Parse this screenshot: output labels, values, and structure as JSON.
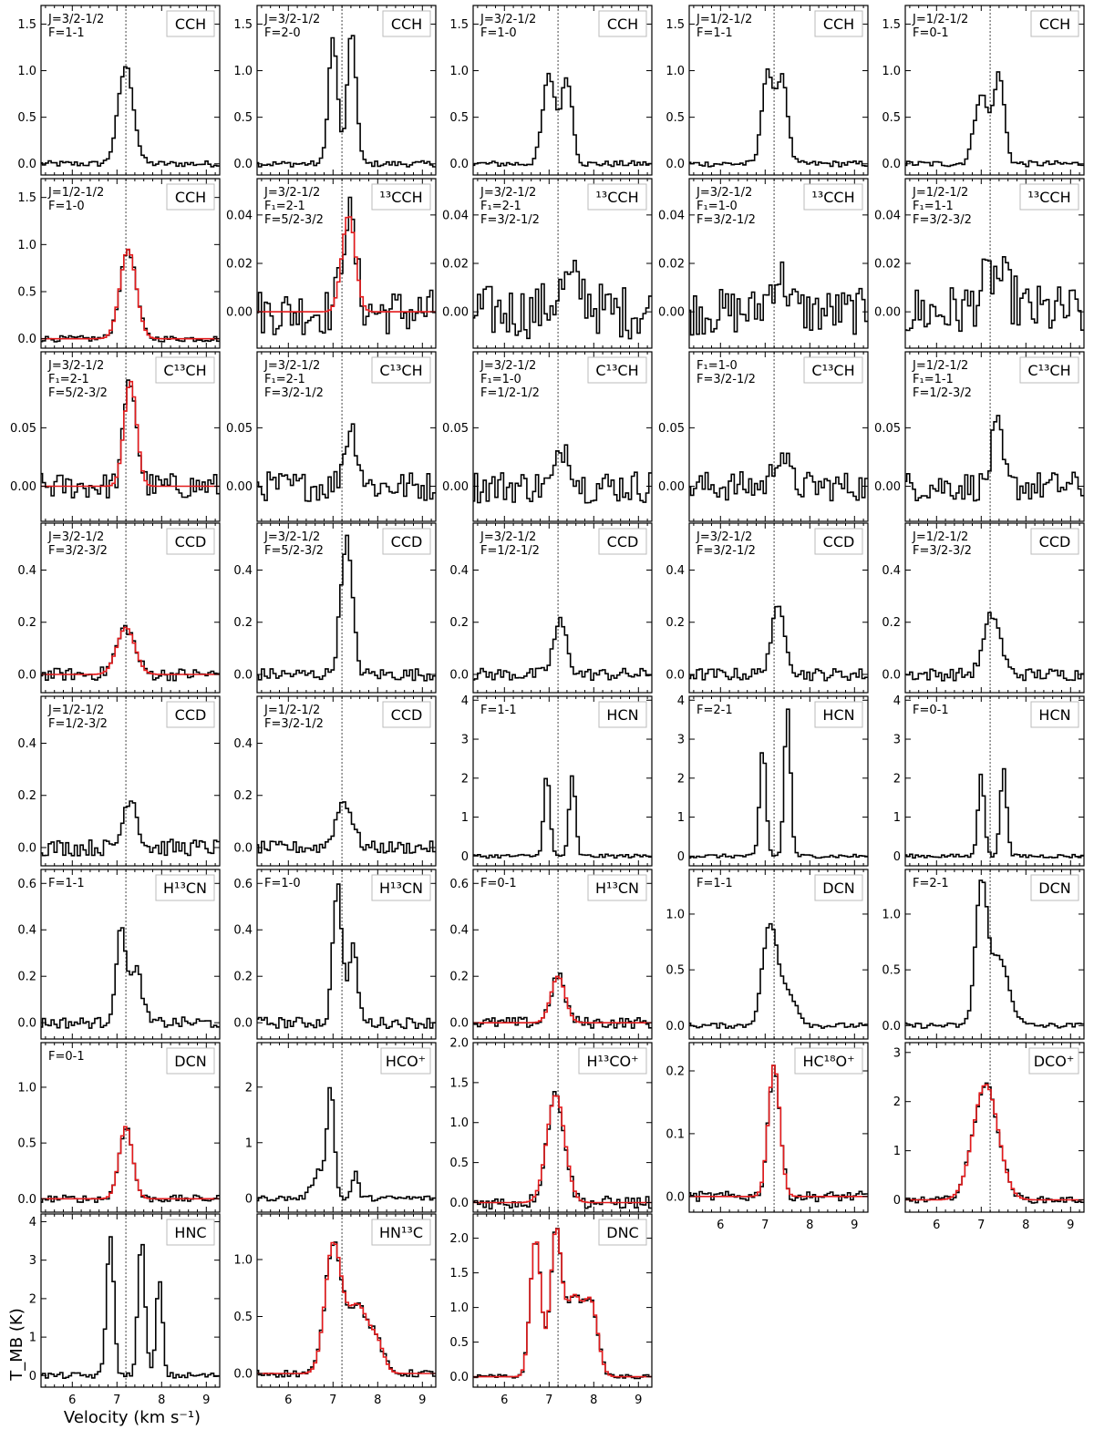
{
  "chart_data": {
    "type": "line",
    "xlabel": "Velocity  (km s⁻¹)",
    "ylabel": "T_MB  (K)",
    "xlim": [
      5.3,
      9.3
    ],
    "x_ticks": [
      6,
      7,
      8,
      9
    ],
    "reference_velocity": 7.2,
    "colors": {
      "observed": "#000000",
      "fit": "#e31a1c",
      "reference_line": "#666666"
    },
    "panels": [
      {
        "row": 0,
        "col": 0,
        "molecule": "CCH",
        "qn": [
          "J=3/2-1/2",
          "F=1-1"
        ],
        "ylim": [
          -0.12,
          1.7
        ],
        "yticks": [
          "0.0",
          "0.5",
          "1.0",
          "1.5"
        ],
        "fit": false,
        "components": [
          {
            "v": 7.2,
            "amp": 1.05,
            "width": 0.17
          }
        ],
        "noise": 0.02
      },
      {
        "row": 0,
        "col": 1,
        "molecule": "CCH",
        "qn": [
          "J=3/2-1/2",
          "F=2-0"
        ],
        "ylim": [
          -0.12,
          1.7
        ],
        "yticks": [
          "0.0",
          "0.5",
          "1.0",
          "1.5"
        ],
        "fit": false,
        "components": [
          {
            "v": 7.0,
            "amp": 1.35,
            "width": 0.1
          },
          {
            "v": 7.42,
            "amp": 1.42,
            "width": 0.1
          }
        ],
        "noise": 0.02
      },
      {
        "row": 0,
        "col": 2,
        "molecule": "CCH",
        "qn": [
          "J=3/2-1/2",
          "F=1-0"
        ],
        "ylim": [
          -0.12,
          1.7
        ],
        "yticks": [
          "0.0",
          "0.5",
          "1.0",
          "1.5"
        ],
        "fit": false,
        "components": [
          {
            "v": 7.0,
            "amp": 0.95,
            "width": 0.14
          },
          {
            "v": 7.4,
            "amp": 0.92,
            "width": 0.12
          }
        ],
        "noise": 0.02
      },
      {
        "row": 0,
        "col": 3,
        "molecule": "CCH",
        "qn": [
          "J=1/2-1/2",
          "F=1-1"
        ],
        "ylim": [
          -0.12,
          1.7
        ],
        "yticks": [
          "0.0",
          "0.5",
          "1.0",
          "1.5"
        ],
        "fit": false,
        "components": [
          {
            "v": 7.05,
            "amp": 1.0,
            "width": 0.12
          },
          {
            "v": 7.38,
            "amp": 0.95,
            "width": 0.12
          }
        ],
        "noise": 0.02
      },
      {
        "row": 0,
        "col": 4,
        "molecule": "CCH",
        "qn": [
          "J=1/2-1/2",
          "F=0-1"
        ],
        "ylim": [
          -0.12,
          1.7
        ],
        "yticks": [
          "0.0",
          "0.5",
          "1.0",
          "1.5"
        ],
        "fit": false,
        "components": [
          {
            "v": 7.0,
            "amp": 0.75,
            "width": 0.15
          },
          {
            "v": 7.4,
            "amp": 0.95,
            "width": 0.12
          }
        ],
        "noise": 0.02
      },
      {
        "row": 1,
        "col": 0,
        "molecule": "CCH",
        "qn": [
          "J=1/2-1/2",
          "F=1-0"
        ],
        "ylim": [
          -0.1,
          1.7
        ],
        "yticks": [
          "0.0",
          "0.5",
          "1.0",
          "1.5"
        ],
        "fit": true,
        "components": [
          {
            "v": 7.25,
            "amp": 0.95,
            "width": 0.18
          }
        ],
        "noise": 0.02
      },
      {
        "row": 1,
        "col": 1,
        "molecule": "¹³CCH",
        "qn": [
          "J=3/2-1/2",
          "F₁=2-1",
          "F=5/2-3/2"
        ],
        "ylim": [
          -0.015,
          0.055
        ],
        "yticks": [
          "0.00",
          "0.02",
          "0.04"
        ],
        "fit": true,
        "components": [
          {
            "v": 7.35,
            "amp": 0.04,
            "width": 0.15
          }
        ],
        "noise": 0.006
      },
      {
        "row": 1,
        "col": 2,
        "molecule": "¹³CCH",
        "qn": [
          "J=3/2-1/2",
          "F₁=2-1",
          "F=3/2-1/2"
        ],
        "ylim": [
          -0.015,
          0.055
        ],
        "yticks": [
          "0.00",
          "0.02",
          "0.04"
        ],
        "fit": false,
        "components": [
          {
            "v": 7.5,
            "amp": 0.012,
            "width": 0.3
          }
        ],
        "noise": 0.007
      },
      {
        "row": 1,
        "col": 3,
        "molecule": "¹³CCH",
        "qn": [
          "J=3/2-1/2",
          "F₁=1-0",
          "F=3/2-1/2"
        ],
        "ylim": [
          -0.015,
          0.055
        ],
        "yticks": [
          "0.00",
          "0.02",
          "0.04"
        ],
        "fit": false,
        "components": [
          {
            "v": 7.3,
            "amp": 0.015,
            "width": 0.2
          }
        ],
        "noise": 0.006
      },
      {
        "row": 1,
        "col": 4,
        "molecule": "¹³CCH",
        "qn": [
          "J=1/2-1/2",
          "F₁=1-1",
          "F=3/2-3/2"
        ],
        "ylim": [
          -0.015,
          0.055
        ],
        "yticks": [
          "0.00",
          "0.02",
          "0.04"
        ],
        "fit": false,
        "components": [
          {
            "v": 7.3,
            "amp": 0.015,
            "width": 0.3
          }
        ],
        "noise": 0.007
      },
      {
        "row": 2,
        "col": 0,
        "molecule": "C¹³CH",
        "qn": [
          "J=3/2-1/2",
          "F₁=2-1",
          "F=5/2-3/2"
        ],
        "ylim": [
          -0.03,
          0.115
        ],
        "yticks": [
          "0.00",
          "0.05"
        ],
        "fit": true,
        "components": [
          {
            "v": 7.3,
            "amp": 0.09,
            "width": 0.14
          }
        ],
        "noise": 0.007
      },
      {
        "row": 2,
        "col": 1,
        "molecule": "C¹³CH",
        "qn": [
          "J=3/2-1/2",
          "F₁=2-1",
          "F=3/2-1/2"
        ],
        "ylim": [
          -0.03,
          0.115
        ],
        "yticks": [
          "0.00",
          "0.05"
        ],
        "fit": false,
        "components": [
          {
            "v": 7.4,
            "amp": 0.05,
            "width": 0.15
          }
        ],
        "noise": 0.008
      },
      {
        "row": 2,
        "col": 2,
        "molecule": "C¹³CH",
        "qn": [
          "J=3/2-1/2",
          "F₁=1-0",
          "F=1/2-1/2"
        ],
        "ylim": [
          -0.03,
          0.115
        ],
        "yticks": [
          "0.00",
          "0.05"
        ],
        "fit": false,
        "components": [
          {
            "v": 7.35,
            "amp": 0.035,
            "width": 0.15
          }
        ],
        "noise": 0.009
      },
      {
        "row": 2,
        "col": 3,
        "molecule": "C¹³CH",
        "qn": [
          "F₁=1-0",
          "F=3/2-1/2"
        ],
        "ylim": [
          -0.03,
          0.115
        ],
        "yticks": [
          "0.00",
          "0.05"
        ],
        "fit": false,
        "components": [
          {
            "v": 7.35,
            "amp": 0.03,
            "width": 0.15
          }
        ],
        "noise": 0.008
      },
      {
        "row": 2,
        "col": 4,
        "molecule": "C¹³CH",
        "qn": [
          "J=1/2-1/2",
          "F₁=1-1",
          "F=1/2-3/2"
        ],
        "ylim": [
          -0.03,
          0.115
        ],
        "yticks": [
          "0.00",
          "0.05"
        ],
        "fit": false,
        "components": [
          {
            "v": 7.35,
            "amp": 0.05,
            "width": 0.12
          }
        ],
        "noise": 0.008
      },
      {
        "row": 3,
        "col": 0,
        "molecule": "CCD",
        "qn": [
          "J=3/2-1/2",
          "F=3/2-3/2"
        ],
        "ylim": [
          -0.07,
          0.58
        ],
        "yticks": [
          "0.0",
          "0.2",
          "0.4"
        ],
        "fit": true,
        "components": [
          {
            "v": 7.2,
            "amp": 0.18,
            "width": 0.2
          }
        ],
        "noise": 0.015
      },
      {
        "row": 3,
        "col": 1,
        "molecule": "CCD",
        "qn": [
          "J=3/2-1/2",
          "F=5/2-3/2"
        ],
        "ylim": [
          -0.07,
          0.58
        ],
        "yticks": [
          "0.0",
          "0.2",
          "0.4"
        ],
        "fit": false,
        "components": [
          {
            "v": 7.3,
            "amp": 0.52,
            "width": 0.13
          }
        ],
        "noise": 0.015
      },
      {
        "row": 3,
        "col": 2,
        "molecule": "CCD",
        "qn": [
          "J=3/2-1/2",
          "F=1/2-1/2"
        ],
        "ylim": [
          -0.07,
          0.58
        ],
        "yticks": [
          "0.0",
          "0.2",
          "0.4"
        ],
        "fit": false,
        "components": [
          {
            "v": 7.25,
            "amp": 0.2,
            "width": 0.15
          }
        ],
        "noise": 0.015
      },
      {
        "row": 3,
        "col": 3,
        "molecule": "CCD",
        "qn": [
          "J=3/2-1/2",
          "F=3/2-1/2"
        ],
        "ylim": [
          -0.07,
          0.58
        ],
        "yticks": [
          "0.0",
          "0.2",
          "0.4"
        ],
        "fit": false,
        "components": [
          {
            "v": 7.3,
            "amp": 0.25,
            "width": 0.16
          }
        ],
        "noise": 0.015
      },
      {
        "row": 3,
        "col": 4,
        "molecule": "CCD",
        "qn": [
          "J=1/2-1/2",
          "F=3/2-3/2"
        ],
        "ylim": [
          -0.07,
          0.58
        ],
        "yticks": [
          "0.0",
          "0.2",
          "0.4"
        ],
        "fit": false,
        "components": [
          {
            "v": 7.25,
            "amp": 0.23,
            "width": 0.18
          }
        ],
        "noise": 0.015
      },
      {
        "row": 4,
        "col": 0,
        "molecule": "CCD",
        "qn": [
          "J=1/2-1/2",
          "F=1/2-3/2"
        ],
        "ylim": [
          -0.07,
          0.58
        ],
        "yticks": [
          "0.0",
          "0.2",
          "0.4"
        ],
        "fit": false,
        "components": [
          {
            "v": 7.3,
            "amp": 0.2,
            "width": 0.15
          }
        ],
        "noise": 0.02
      },
      {
        "row": 4,
        "col": 1,
        "molecule": "CCD",
        "qn": [
          "J=1/2-1/2",
          "F=3/2-1/2"
        ],
        "ylim": [
          -0.07,
          0.58
        ],
        "yticks": [
          "0.0",
          "0.2",
          "0.4"
        ],
        "fit": false,
        "components": [
          {
            "v": 7.25,
            "amp": 0.18,
            "width": 0.18
          }
        ],
        "noise": 0.015
      },
      {
        "row": 4,
        "col": 2,
        "molecule": "HCN",
        "qn": [
          "F=1-1"
        ],
        "ylim": [
          -0.25,
          4.1
        ],
        "yticks": [
          "0",
          "1",
          "2",
          "3",
          "4"
        ],
        "fit": false,
        "components": [
          {
            "v": 6.95,
            "amp": 2.1,
            "width": 0.07
          },
          {
            "v": 7.52,
            "amp": 2.05,
            "width": 0.07
          }
        ],
        "noise": 0.03
      },
      {
        "row": 4,
        "col": 3,
        "molecule": "HCN",
        "qn": [
          "F=2-1"
        ],
        "ylim": [
          -0.25,
          4.1
        ],
        "yticks": [
          "0",
          "1",
          "2",
          "3",
          "4"
        ],
        "fit": false,
        "components": [
          {
            "v": 6.95,
            "amp": 2.8,
            "width": 0.07
          },
          {
            "v": 7.5,
            "amp": 3.8,
            "width": 0.07
          }
        ],
        "noise": 0.03
      },
      {
        "row": 4,
        "col": 4,
        "molecule": "HCN",
        "qn": [
          "F=0-1"
        ],
        "ylim": [
          -0.25,
          4.1
        ],
        "yticks": [
          "0",
          "1",
          "2",
          "3",
          "4"
        ],
        "fit": false,
        "components": [
          {
            "v": 7.0,
            "amp": 2.15,
            "width": 0.07
          },
          {
            "v": 7.5,
            "amp": 2.3,
            "width": 0.07
          }
        ],
        "noise": 0.03
      },
      {
        "row": 5,
        "col": 0,
        "molecule": "H¹³CN",
        "qn": [
          "F=1-1"
        ],
        "ylim": [
          -0.07,
          0.66
        ],
        "yticks": [
          "0.0",
          "0.2",
          "0.4",
          "0.6"
        ],
        "fit": false,
        "components": [
          {
            "v": 7.1,
            "amp": 0.4,
            "width": 0.12
          },
          {
            "v": 7.45,
            "amp": 0.22,
            "width": 0.12
          }
        ],
        "noise": 0.015
      },
      {
        "row": 5,
        "col": 1,
        "molecule": "H¹³CN",
        "qn": [
          "F=1-0"
        ],
        "ylim": [
          -0.07,
          0.66
        ],
        "yticks": [
          "0.0",
          "0.2",
          "0.4",
          "0.6"
        ],
        "fit": false,
        "components": [
          {
            "v": 7.1,
            "amp": 0.6,
            "width": 0.1
          },
          {
            "v": 7.45,
            "amp": 0.32,
            "width": 0.1
          }
        ],
        "noise": 0.015
      },
      {
        "row": 5,
        "col": 2,
        "molecule": "H¹³CN",
        "qn": [
          "F=0-1"
        ],
        "ylim": [
          -0.07,
          0.66
        ],
        "yticks": [
          "0.0",
          "0.2",
          "0.4",
          "0.6"
        ],
        "fit": true,
        "components": [
          {
            "v": 7.2,
            "amp": 0.2,
            "width": 0.16
          }
        ],
        "noise": 0.015
      },
      {
        "row": 5,
        "col": 3,
        "molecule": "DCN",
        "qn": [
          "F=1-1"
        ],
        "ylim": [
          -0.12,
          1.4
        ],
        "yticks": [
          "0.0",
          "0.5",
          "1.0"
        ],
        "fit": false,
        "components": [
          {
            "v": 7.1,
            "amp": 0.88,
            "width": 0.16
          },
          {
            "v": 7.5,
            "amp": 0.3,
            "width": 0.2
          }
        ],
        "noise": 0.015
      },
      {
        "row": 5,
        "col": 4,
        "molecule": "DCN",
        "qn": [
          "F=2-1"
        ],
        "ylim": [
          -0.12,
          1.4
        ],
        "yticks": [
          "0.0",
          "0.5",
          "1.0"
        ],
        "fit": false,
        "components": [
          {
            "v": 7.0,
            "amp": 1.2,
            "width": 0.13
          },
          {
            "v": 7.4,
            "amp": 0.6,
            "width": 0.22
          }
        ],
        "noise": 0.015
      },
      {
        "row": 6,
        "col": 0,
        "molecule": "DCN",
        "qn": [
          "F=0-1"
        ],
        "ylim": [
          -0.12,
          1.4
        ],
        "yticks": [
          "0.0",
          "0.5",
          "1.0"
        ],
        "fit": true,
        "components": [
          {
            "v": 7.2,
            "amp": 0.65,
            "width": 0.15
          }
        ],
        "noise": 0.02
      },
      {
        "row": 6,
        "col": 1,
        "molecule": "HCO⁺",
        "qn": [],
        "ylim": [
          -0.25,
          2.8
        ],
        "yticks": [
          "0",
          "1",
          "2"
        ],
        "fit": false,
        "components": [
          {
            "v": 6.95,
            "amp": 1.9,
            "width": 0.08
          },
          {
            "v": 6.7,
            "amp": 0.5,
            "width": 0.15
          },
          {
            "v": 7.5,
            "amp": 0.45,
            "width": 0.07
          }
        ],
        "noise": 0.03
      },
      {
        "row": 6,
        "col": 2,
        "molecule": "H¹³CO⁺",
        "qn": [],
        "ylim": [
          -0.12,
          2.0
        ],
        "yticks": [
          "0.0",
          "0.5",
          "1.0",
          "1.5",
          "2.0"
        ],
        "fit": true,
        "components": [
          {
            "v": 7.15,
            "amp": 1.35,
            "width": 0.2
          }
        ],
        "noise": 0.05
      },
      {
        "row": 6,
        "col": 3,
        "molecule": "HC¹⁸O⁺",
        "qn": [],
        "ylim": [
          -0.025,
          0.245
        ],
        "yticks": [
          "0.0",
          "0.1",
          "0.2"
        ],
        "fit": true,
        "components": [
          {
            "v": 7.2,
            "amp": 0.21,
            "width": 0.13
          }
        ],
        "noise": 0.005
      },
      {
        "row": 6,
        "col": 4,
        "molecule": "DCO⁺",
        "qn": [],
        "ylim": [
          -0.25,
          3.2
        ],
        "yticks": [
          "0",
          "1",
          "2",
          "3"
        ],
        "fit": true,
        "components": [
          {
            "v": 7.1,
            "amp": 2.35,
            "width": 0.28
          }
        ],
        "noise": 0.04
      },
      {
        "row": 7,
        "col": 0,
        "molecule": "HNC",
        "qn": [],
        "ylim": [
          -0.3,
          4.2
        ],
        "yticks": [
          "0",
          "1",
          "2",
          "3",
          "4"
        ],
        "fit": false,
        "components": [
          {
            "v": 6.85,
            "amp": 3.7,
            "width": 0.08
          },
          {
            "v": 7.55,
            "amp": 3.5,
            "width": 0.08
          },
          {
            "v": 7.95,
            "amp": 2.5,
            "width": 0.07
          }
        ],
        "noise": 0.05
      },
      {
        "row": 7,
        "col": 1,
        "molecule": "HN¹³C",
        "qn": [],
        "ylim": [
          -0.12,
          1.4
        ],
        "yticks": [
          "0.0",
          "0.5",
          "1.0"
        ],
        "fit": true,
        "components": [
          {
            "v": 7.0,
            "amp": 1.1,
            "width": 0.18
          },
          {
            "v": 7.55,
            "amp": 0.6,
            "width": 0.25
          },
          {
            "v": 8.0,
            "amp": 0.2,
            "width": 0.15
          }
        ],
        "noise": 0.02
      },
      {
        "row": 7,
        "col": 2,
        "molecule": "DNC",
        "qn": [],
        "ylim": [
          -0.15,
          2.35
        ],
        "yticks": [
          "0.0",
          "0.5",
          "1.0",
          "1.5",
          "2.0"
        ],
        "fit": true,
        "components": [
          {
            "v": 6.7,
            "amp": 2.0,
            "width": 0.12
          },
          {
            "v": 7.15,
            "amp": 2.0,
            "width": 0.12
          },
          {
            "v": 7.55,
            "amp": 1.15,
            "width": 0.2
          },
          {
            "v": 7.95,
            "amp": 0.95,
            "width": 0.15
          }
        ],
        "noise": 0.02
      }
    ]
  }
}
